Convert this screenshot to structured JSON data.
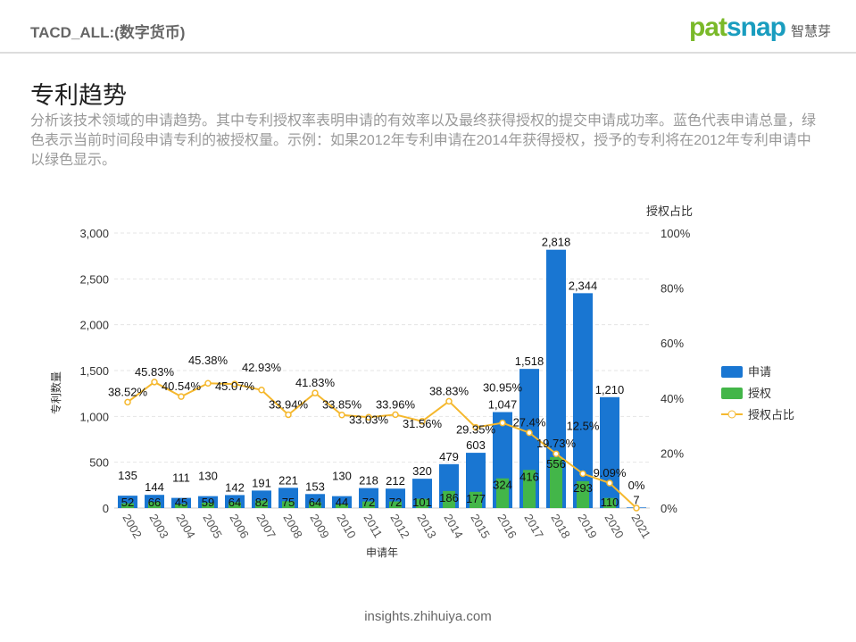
{
  "header": {
    "title": "TACD_ALL:(数字货币)",
    "logo_text": "patsnap",
    "logo_cn": "智慧芽"
  },
  "section": {
    "title": "专利趋势",
    "description": "分析该技术领域的申请趋势。其中专利授权率表明申请的有效率以及最终获得授权的提交申请成功率。蓝色代表申请总量，绿色表示当前时间段申请专利的被授权量。示例：如果2012年专利申请在2014年获得授权，授予的专利将在2012年专利申请中以绿色显示。"
  },
  "footer": {
    "url": "insights.zhihuiya.com"
  },
  "chart_data": {
    "type": "bar",
    "xlabel": "申请年",
    "ylabel": "专利数量",
    "y2label": "授权占比",
    "ylim": [
      0,
      3000
    ],
    "y2lim": [
      0,
      100
    ],
    "yticks": [
      "0",
      "500",
      "1,000",
      "1,500",
      "2,000",
      "2,500",
      "3,000"
    ],
    "y2ticks": [
      "0%",
      "20%",
      "40%",
      "60%",
      "80%",
      "100%"
    ],
    "categories": [
      "2002",
      "2003",
      "2004",
      "2005",
      "2006",
      "2007",
      "2008",
      "2009",
      "2010",
      "2011",
      "2012",
      "2013",
      "2014",
      "2015",
      "2016",
      "2017",
      "2018",
      "2019",
      "2020",
      "2021"
    ],
    "series": [
      {
        "name": "申请",
        "type": "bar",
        "color": "#1976d2",
        "values": [
          135,
          144,
          111,
          130,
          142,
          191,
          221,
          153,
          130,
          218,
          212,
          320,
          479,
          603,
          1047,
          1518,
          2818,
          2344,
          1210,
          7
        ],
        "labels": [
          "135",
          "144",
          "111",
          "130",
          "142",
          "191",
          "221",
          "153",
          "130",
          "218",
          "212",
          "320",
          "479",
          "603",
          "1,047",
          "1,518",
          "2,818",
          "2,344",
          "1,210",
          "7"
        ]
      },
      {
        "name": "授权",
        "type": "bar",
        "color": "#43b649",
        "values": [
          52,
          66,
          45,
          59,
          64,
          82,
          75,
          64,
          44,
          72,
          72,
          101,
          186,
          177,
          324,
          416,
          556,
          293,
          110,
          0
        ],
        "labels": [
          "52",
          "66",
          "45",
          "59",
          "64",
          "82",
          "75",
          "64",
          "44",
          "72",
          "72",
          "101",
          "186",
          "177",
          "324",
          "416",
          "556",
          "293",
          "110",
          ""
        ]
      },
      {
        "name": "授权占比",
        "type": "line",
        "color": "#f5b82e",
        "values": [
          38.52,
          45.83,
          40.54,
          45.38,
          45.07,
          42.93,
          33.94,
          41.83,
          33.85,
          33.03,
          33.96,
          31.56,
          38.83,
          29.35,
          30.95,
          27.4,
          19.73,
          12.5,
          9.09,
          0
        ],
        "labels": [
          "38.52%",
          "45.83%",
          "40.54%",
          "45.38%",
          "45.07%",
          "42.93%",
          "33.94%",
          "41.83%",
          "33.85%",
          "33.03%",
          "33.96%",
          "31.56%",
          "38.83%",
          "29.35%",
          "30.95%",
          "27.4%",
          "19.73%",
          "12.5%",
          "9.09%",
          "0%"
        ]
      }
    ],
    "legend": {
      "position": "right"
    }
  }
}
